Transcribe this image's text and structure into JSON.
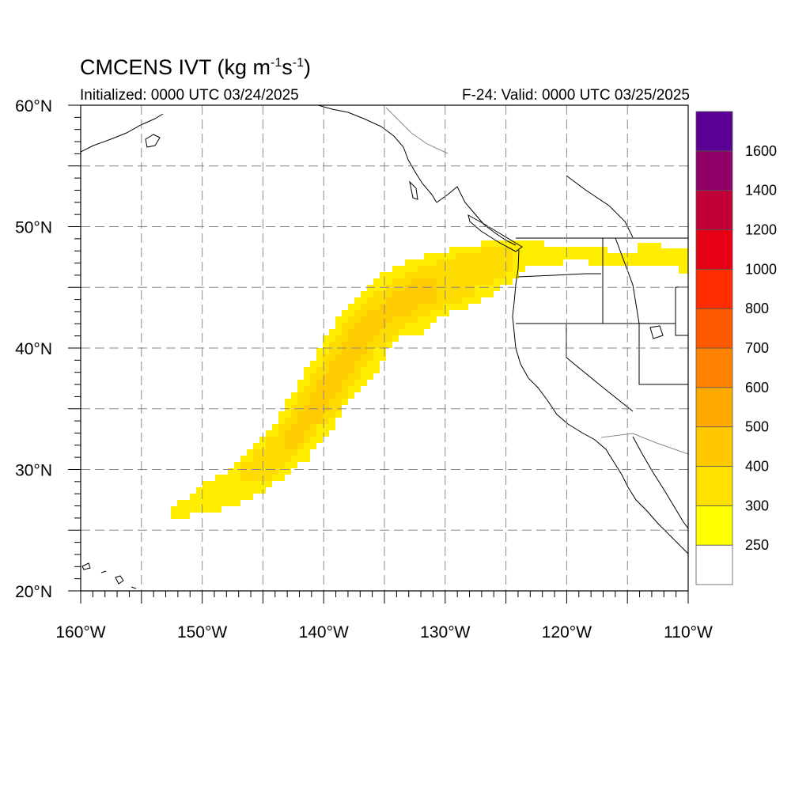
{
  "header": {
    "title_main": "CMCENS IVT (kg m",
    "title_exp1": "-1",
    "title_mid": "s",
    "title_exp2": "-1",
    "title_end": ")",
    "initialized": "Initialized: 0000 UTC 03/24/2025",
    "valid": "F-24: Valid: 0000 UTC 03/25/2025"
  },
  "map": {
    "lon_range": [
      -160,
      -110
    ],
    "lat_range": [
      20,
      60
    ],
    "grid_interval_deg": 5,
    "grid": true,
    "lat_labels": [
      "20°N",
      "30°N",
      "40°N",
      "50°N",
      "60°N"
    ],
    "lon_labels": [
      "160°W",
      "150°W",
      "140°W",
      "130°W",
      "120°W",
      "110°W"
    ],
    "river_core_path_lonlat": [
      [
        -152.0,
        26.5
      ],
      [
        -146.5,
        29.0
      ],
      [
        -142.5,
        32.5
      ],
      [
        -139.5,
        37.0
      ],
      [
        -136.5,
        41.5
      ],
      [
        -132.5,
        44.5
      ],
      [
        -127.5,
        46.5
      ],
      [
        -124.0,
        48.0
      ],
      [
        -118.0,
        47.5
      ],
      [
        -113.0,
        47.3
      ],
      [
        -110.0,
        47.3
      ]
    ]
  },
  "colorbar": {
    "levels": [
      "250",
      "300",
      "400",
      "500",
      "600",
      "700",
      "800",
      "1000",
      "1200",
      "1400",
      "1600"
    ],
    "colors": [
      "#ffffff",
      "#ffff00",
      "#ffe100",
      "#ffc800",
      "#ffaa00",
      "#ff8200",
      "#ff5a00",
      "#ff2d00",
      "#e60014",
      "#c00036",
      "#900068",
      "#5a0095"
    ]
  }
}
